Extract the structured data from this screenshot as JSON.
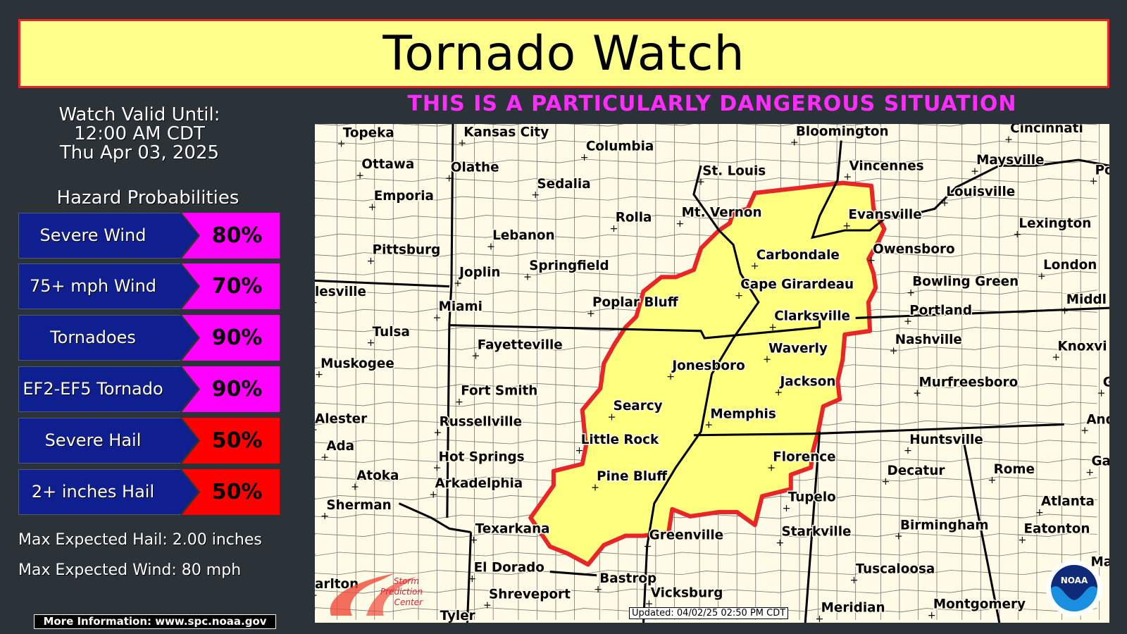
{
  "header": {
    "title": "Tornado Watch",
    "pds_banner": "THIS IS A PARTICULARLY DANGEROUS SITUATION"
  },
  "valid": {
    "label": "Watch Valid Until:",
    "time": "12:00 AM CDT",
    "date": "Thu Apr 03, 2025"
  },
  "hazards": {
    "title": "Hazard Probabilities",
    "items": [
      {
        "label": "Severe Wind",
        "value": "80%",
        "color": "#ff00ff"
      },
      {
        "label": "75+ mph Wind",
        "value": "70%",
        "color": "#ff00ff"
      },
      {
        "label": "Tornadoes",
        "value": "90%",
        "color": "#ff00ff"
      },
      {
        "label": "EF2-EF5 Tornado",
        "value": "90%",
        "color": "#ff00ff"
      },
      {
        "label": "Severe Hail",
        "value": "50%",
        "color": "#ff0000"
      },
      {
        "label": "2+ inches Hail",
        "value": "50%",
        "color": "#ff0000"
      }
    ]
  },
  "max_hail": "Max Expected Hail: 2.00 inches",
  "max_wind": "Max Expected Wind:  80 mph",
  "more_info": "More Information: www.spc.noaa.gov",
  "map": {
    "updated": "Updated: 04/02/25 02:50 PM CDT",
    "watch_fill": "#ffff80",
    "watch_outline": "#e8262a",
    "logos": [
      "Storm Prediction Center",
      "NOAA"
    ],
    "cities": [
      "Topeka",
      "Kansas City",
      "Columbia",
      "Bloomington",
      "Cincinnati",
      "Ottawa",
      "Olathe",
      "Sedalia",
      "St. Louis",
      "Vincennes",
      "Maysville",
      "Po",
      "Emporia",
      "Louisville",
      "Rolla",
      "Mt. Vernon",
      "Evansville",
      "Lexington",
      "Lebanon",
      "Pittsburg",
      "Carbondale",
      "Owensboro",
      "Springfield",
      "Joplin",
      "Bowling Green",
      "London",
      "lesville",
      "Cape Girardeau",
      "Middl",
      "Poplar Bluff",
      "Miami",
      "Clarksville",
      "Portland",
      "Tulsa",
      "Nashville",
      "Fayetteville",
      "Waverly",
      "Knoxvi",
      "Muskogee",
      "Jonesboro",
      "Jackson",
      "Murfreesboro",
      "Gat",
      "Fort Smith",
      "Searcy",
      "Memphis",
      "Alester",
      "Russellville",
      "Andre",
      "Ada",
      "Little Rock",
      "Huntsville",
      "Hot Springs",
      "Florence",
      "Gaine",
      "Decatur",
      "Rome",
      "Atoka",
      "Pine Bluff",
      "Arkadelphia",
      "Tupelo",
      "Atlanta",
      "Sherman",
      "Birmingham",
      "Texarkana",
      "Eatonton",
      "Starkville",
      "Greenville",
      "Ma",
      "El Dorado",
      "Tuscaloosa",
      "Bastrop",
      "Shreveport",
      "Meridian",
      "Montgomery",
      "Tyler",
      "arlton",
      "Vicksburg"
    ]
  }
}
